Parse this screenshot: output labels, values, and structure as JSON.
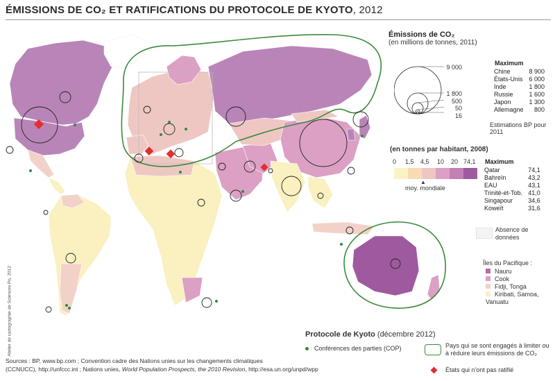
{
  "title": {
    "main": "ÉMISSIONS DE CO₂ ET RATIFICATIONS DU PROTOCOLE DE KYOTO",
    "year": ", 2012"
  },
  "legend_emissions": {
    "title": "Émissions de CO₂",
    "subtitle": "(en millions de tonnes, 2011)",
    "scale_values": [
      "9 000",
      "1 800",
      "500",
      "50",
      "16"
    ],
    "max_header": "Maximum",
    "max_rows": [
      {
        "country": "Chine",
        "value": "8 900"
      },
      {
        "country": "États-Unis",
        "value": "6 000"
      },
      {
        "country": "Inde",
        "value": "1 800"
      },
      {
        "country": "Russie",
        "value": "1 600"
      },
      {
        "country": "Japon",
        "value": "1 300"
      },
      {
        "country": "Allemagne",
        "value": "800"
      }
    ],
    "note": "Estimations BP pour 2011"
  },
  "legend_per_capita": {
    "title": "(en tonnes par habitant, 2008)",
    "ticks": [
      "0",
      "1,5",
      "4,5",
      "10",
      "20",
      "74,1"
    ],
    "colors": [
      "#faf3c4",
      "#f6dcb4",
      "#efc7c2",
      "#dca0c4",
      "#c47fb6",
      "#9f5a9f"
    ],
    "world_avg": "moy. mondiale",
    "max_header": "Maximum",
    "max_rows": [
      {
        "country": "Qatar",
        "value": "74,1"
      },
      {
        "country": "Bahreïn",
        "value": "43,2"
      },
      {
        "country": "EAU",
        "value": "43,1"
      },
      {
        "country": "Trinité-et-Tob.",
        "value": "41,0"
      },
      {
        "country": "Singapour",
        "value": "34,6"
      },
      {
        "country": "Koweït",
        "value": "31,6"
      }
    ],
    "no_data": "Absence de données"
  },
  "legend_pacific": {
    "title": "Îles du Pacifique :",
    "items": [
      "Nauru",
      "Cook",
      "Fidji, Tonga",
      "Kiribati, Samoa, Vanuatu"
    ],
    "colors": [
      "#b86aa8",
      "#dca0c4",
      "#f2d2c8",
      "#faf0c0"
    ]
  },
  "legend_kyoto": {
    "title": "Protocole de Kyoto",
    "date": "(décembre 2012)",
    "cop": "Conférences des parties (COP)",
    "committed": "Pays qui se sont engagés à limiter ou à réduire leurs émissions de CO₂",
    "not_ratified": "États qui n'ont pas ratifié"
  },
  "sources": {
    "line1": "Sources : BP, www.bp.com ; Convention cadre des Nations unies sur les changements climatiques",
    "line2_a": "(CCNUCC), http://unfccc.int ; Nations unies, ",
    "line2_b": "World Population Prospects, the 2010 Revision",
    "line2_c": ", http://esa.un.org/unpd/wpp"
  },
  "credit": "Atelier de cartographie de Sciences Po, 2012",
  "colors": {
    "kyoto_outline": "#3a8a3a",
    "cop_dot": "#2e8b3e",
    "not_ratified": "#e03030"
  }
}
